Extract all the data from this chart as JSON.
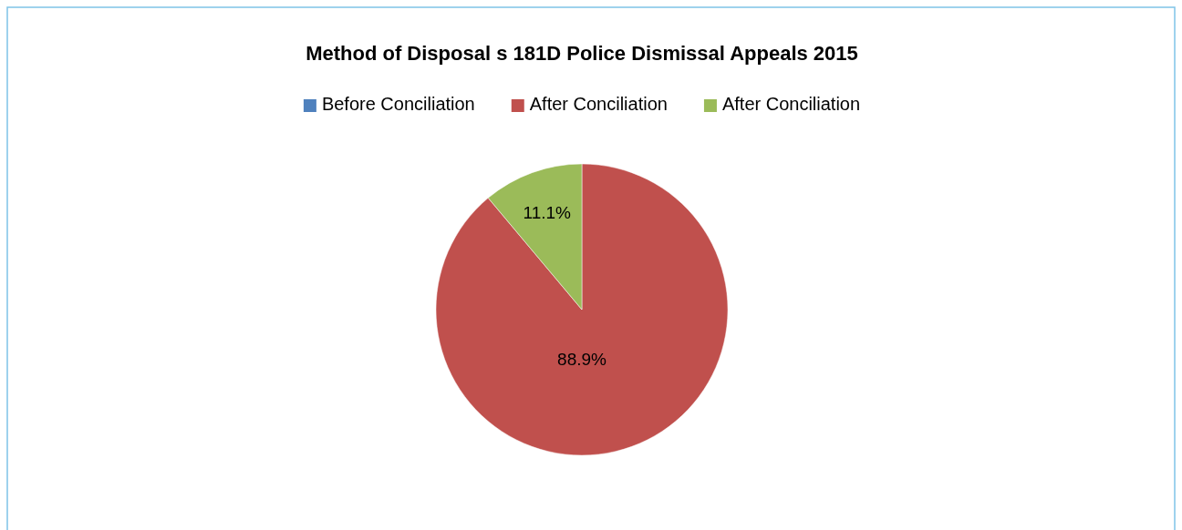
{
  "chart_data": {
    "type": "pie",
    "title": "Method of Disposal s 181D  Police Dismissal Appeals 2015",
    "categories": [
      "Before Conciliation",
      "After Conciliation",
      "After Conciliation"
    ],
    "values": [
      0,
      88.9,
      11.1
    ],
    "colors": [
      "#4f81bd",
      "#c0504d",
      "#9bbb59"
    ],
    "value_labels": [
      null,
      "88.9%",
      "11.1%"
    ],
    "legend": "top"
  }
}
